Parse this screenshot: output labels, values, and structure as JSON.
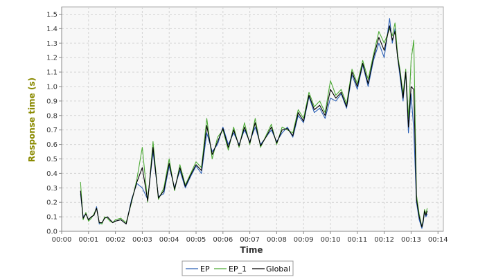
{
  "chart_data": {
    "type": "line",
    "xlabel": "Time",
    "ylabel": "Response time (s)",
    "xlim": [
      0,
      14.2
    ],
    "ylim": [
      0,
      1.55
    ],
    "x_ticks": [
      0,
      1,
      2,
      3,
      4,
      5,
      6,
      7,
      8,
      9,
      10,
      11,
      12,
      13,
      14
    ],
    "x_tick_labels": [
      "00:00",
      "00:01",
      "00:02",
      "00:03",
      "00:04",
      "00:05",
      "00:06",
      "00:07",
      "00:08",
      "00:09",
      "00:10",
      "00:11",
      "00:12",
      "00:13",
      "00:14"
    ],
    "y_ticks": [
      0,
      0.1,
      0.2,
      0.3,
      0.4,
      0.5,
      0.6,
      0.7,
      0.8,
      0.9,
      1.0,
      1.1,
      1.2,
      1.3,
      1.4,
      1.5
    ],
    "y_tick_labels": [
      "0.0",
      "0.1",
      "0.2",
      "0.3",
      "0.4",
      "0.5",
      "0.6",
      "0.7",
      "0.8",
      "0.9",
      "1.0",
      "1.1",
      "1.2",
      "1.3",
      "1.4",
      "1.5"
    ],
    "grid": true,
    "legend_position": "bottom-center",
    "colors": {
      "EP": "#2a5fb5",
      "EP_1": "#4caa35",
      "Global": "#000000",
      "ylabel": "#8a8a00",
      "xlabel": "#333333",
      "plot_bg": "#f7f7f7",
      "grid": "#d4d4d4"
    },
    "series": [
      {
        "name": "EP",
        "x": [
          0.7,
          0.8,
          0.9,
          1.0,
          1.1,
          1.2,
          1.3,
          1.4,
          1.5,
          1.6,
          1.7,
          1.8,
          1.9,
          2.0,
          2.2,
          2.4,
          2.6,
          2.8,
          3.0,
          3.2,
          3.4,
          3.6,
          3.8,
          4.0,
          4.2,
          4.4,
          4.6,
          4.8,
          5.0,
          5.2,
          5.4,
          5.6,
          5.8,
          6.0,
          6.2,
          6.4,
          6.6,
          6.8,
          7.0,
          7.2,
          7.4,
          7.6,
          7.8,
          8.0,
          8.2,
          8.4,
          8.6,
          8.8,
          9.0,
          9.2,
          9.4,
          9.6,
          9.8,
          10.0,
          10.2,
          10.4,
          10.6,
          10.8,
          11.0,
          11.2,
          11.4,
          11.6,
          11.8,
          12.0,
          12.2,
          12.3,
          12.4,
          12.5,
          12.6,
          12.7,
          12.8,
          12.9,
          13.0,
          13.1,
          13.2,
          13.3,
          13.4,
          13.45,
          13.5,
          13.55,
          13.6
        ],
        "y": [
          0.26,
          0.1,
          0.12,
          0.08,
          0.1,
          0.11,
          0.17,
          0.05,
          0.06,
          0.09,
          0.1,
          0.08,
          0.06,
          0.07,
          0.08,
          0.05,
          0.22,
          0.33,
          0.3,
          0.22,
          0.55,
          0.24,
          0.26,
          0.45,
          0.3,
          0.42,
          0.3,
          0.38,
          0.45,
          0.4,
          0.68,
          0.55,
          0.6,
          0.72,
          0.6,
          0.68,
          0.6,
          0.7,
          0.62,
          0.72,
          0.6,
          0.65,
          0.7,
          0.62,
          0.68,
          0.72,
          0.65,
          0.8,
          0.75,
          0.93,
          0.82,
          0.85,
          0.78,
          0.92,
          0.9,
          0.95,
          0.85,
          1.08,
          0.98,
          1.15,
          1.0,
          1.18,
          1.3,
          1.2,
          1.47,
          1.3,
          1.4,
          1.2,
          1.05,
          0.9,
          1.1,
          0.68,
          0.95,
          0.7,
          0.2,
          0.08,
          0.02,
          0.06,
          0.14,
          0.1,
          0.12
        ]
      },
      {
        "name": "EP_1",
        "x": [
          0.7,
          0.8,
          0.9,
          1.0,
          1.1,
          1.2,
          1.3,
          1.4,
          1.5,
          1.6,
          1.7,
          1.8,
          1.9,
          2.0,
          2.2,
          2.4,
          2.6,
          2.8,
          3.0,
          3.2,
          3.4,
          3.6,
          3.8,
          4.0,
          4.2,
          4.4,
          4.6,
          4.8,
          5.0,
          5.2,
          5.4,
          5.6,
          5.8,
          6.0,
          6.2,
          6.4,
          6.6,
          6.8,
          7.0,
          7.2,
          7.4,
          7.6,
          7.8,
          8.0,
          8.2,
          8.4,
          8.6,
          8.8,
          9.0,
          9.2,
          9.4,
          9.6,
          9.8,
          10.0,
          10.2,
          10.4,
          10.6,
          10.8,
          11.0,
          11.2,
          11.4,
          11.6,
          11.8,
          12.0,
          12.2,
          12.3,
          12.4,
          12.5,
          12.6,
          12.7,
          12.8,
          12.9,
          13.0,
          13.1,
          13.2,
          13.3,
          13.4,
          13.45,
          13.5,
          13.55,
          13.6
        ],
        "y": [
          0.34,
          0.08,
          0.13,
          0.07,
          0.09,
          0.12,
          0.16,
          0.06,
          0.05,
          0.1,
          0.09,
          0.07,
          0.06,
          0.08,
          0.09,
          0.06,
          0.2,
          0.36,
          0.58,
          0.2,
          0.62,
          0.22,
          0.3,
          0.5,
          0.28,
          0.46,
          0.32,
          0.4,
          0.48,
          0.44,
          0.78,
          0.5,
          0.65,
          0.7,
          0.56,
          0.72,
          0.58,
          0.75,
          0.6,
          0.78,
          0.58,
          0.66,
          0.74,
          0.6,
          0.72,
          0.7,
          0.68,
          0.84,
          0.78,
          0.96,
          0.86,
          0.9,
          0.82,
          1.04,
          0.94,
          0.98,
          0.88,
          1.12,
          1.02,
          1.18,
          1.05,
          1.22,
          1.38,
          1.3,
          1.4,
          1.35,
          1.44,
          1.22,
          1.1,
          0.95,
          1.12,
          0.78,
          1.18,
          1.32,
          0.25,
          0.12,
          0.03,
          0.08,
          0.15,
          0.12,
          0.16
        ]
      },
      {
        "name": "Global",
        "x": [
          0.7,
          0.8,
          0.9,
          1.0,
          1.1,
          1.2,
          1.3,
          1.4,
          1.5,
          1.6,
          1.7,
          1.8,
          1.9,
          2.0,
          2.2,
          2.4,
          2.6,
          2.8,
          3.0,
          3.2,
          3.4,
          3.6,
          3.8,
          4.0,
          4.2,
          4.4,
          4.6,
          4.8,
          5.0,
          5.2,
          5.4,
          5.6,
          5.8,
          6.0,
          6.2,
          6.4,
          6.6,
          6.8,
          7.0,
          7.2,
          7.4,
          7.6,
          7.8,
          8.0,
          8.2,
          8.4,
          8.6,
          8.8,
          9.0,
          9.2,
          9.4,
          9.6,
          9.8,
          10.0,
          10.2,
          10.4,
          10.6,
          10.8,
          11.0,
          11.2,
          11.4,
          11.6,
          11.8,
          12.0,
          12.2,
          12.3,
          12.4,
          12.5,
          12.6,
          12.7,
          12.8,
          12.9,
          13.0,
          13.1,
          13.2,
          13.3,
          13.4,
          13.45,
          13.5,
          13.55,
          13.6
        ],
        "y": [
          0.28,
          0.09,
          0.12,
          0.08,
          0.1,
          0.11,
          0.16,
          0.06,
          0.06,
          0.09,
          0.1,
          0.08,
          0.06,
          0.07,
          0.08,
          0.05,
          0.21,
          0.34,
          0.44,
          0.21,
          0.58,
          0.23,
          0.28,
          0.47,
          0.29,
          0.44,
          0.31,
          0.39,
          0.46,
          0.42,
          0.73,
          0.53,
          0.62,
          0.71,
          0.58,
          0.7,
          0.59,
          0.72,
          0.61,
          0.75,
          0.59,
          0.65,
          0.72,
          0.61,
          0.7,
          0.71,
          0.66,
          0.82,
          0.76,
          0.94,
          0.84,
          0.87,
          0.8,
          0.98,
          0.92,
          0.96,
          0.86,
          1.1,
          1.0,
          1.16,
          1.02,
          1.2,
          1.34,
          1.25,
          1.42,
          1.32,
          1.38,
          1.2,
          1.08,
          0.92,
          1.1,
          0.72,
          1.0,
          0.98,
          0.22,
          0.1,
          0.03,
          0.07,
          0.14,
          0.11,
          0.14
        ]
      }
    ]
  }
}
